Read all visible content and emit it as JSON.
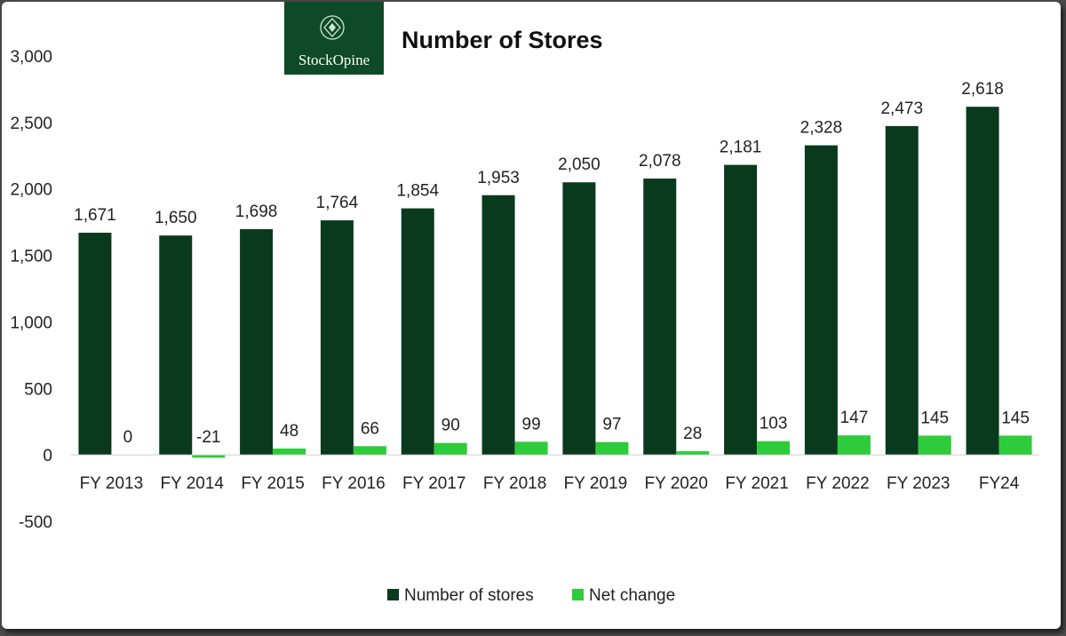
{
  "chart_data": {
    "type": "bar",
    "title": "Number of Stores",
    "categories": [
      "FY 2013",
      "FY 2014",
      "FY 2015",
      "FY 2016",
      "FY 2017",
      "FY 2018",
      "FY 2019",
      "FY 2020",
      "FY 2021",
      "FY 2022",
      "FY 2023",
      "FY24"
    ],
    "series": [
      {
        "name": "Number of stores",
        "color": "#0a3a1e",
        "values": [
          1671,
          1650,
          1698,
          1764,
          1854,
          1953,
          2050,
          2078,
          2181,
          2328,
          2473,
          2618
        ],
        "labels": [
          "1,671",
          "1,650",
          "1,698",
          "1,764",
          "1,854",
          "1,953",
          "2,050",
          "2,078",
          "2,181",
          "2,328",
          "2,473",
          "2,618"
        ]
      },
      {
        "name": "Net change",
        "color": "#2ecc3a",
        "values": [
          0,
          -21,
          48,
          66,
          90,
          99,
          97,
          28,
          103,
          147,
          145,
          145
        ],
        "labels": [
          "0",
          "-21",
          "48",
          "66",
          "90",
          "99",
          "97",
          "28",
          "103",
          "147",
          "145",
          "145"
        ]
      }
    ],
    "ylim": [
      -500,
      3000
    ],
    "yticks": [
      -500,
      0,
      500,
      1000,
      1500,
      2000,
      2500,
      3000
    ],
    "ytick_labels": [
      "-500",
      "0",
      "500",
      "1,000",
      "1,500",
      "2,000",
      "2,500",
      "3,000"
    ],
    "xlabel": "",
    "ylabel": "",
    "grid": false,
    "legend_position": "bottom-center"
  },
  "logo": {
    "text": "StockOpine",
    "background": "#0f4a27",
    "icon": "diamond-emblem-icon"
  }
}
